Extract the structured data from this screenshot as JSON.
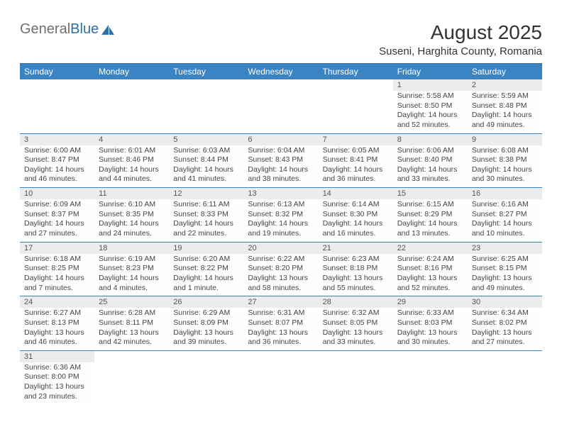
{
  "logo": {
    "word1": "General",
    "word2": "Blue"
  },
  "title": "August 2025",
  "location": "Suseni, Harghita County, Romania",
  "headers": [
    "Sunday",
    "Monday",
    "Tuesday",
    "Wednesday",
    "Thursday",
    "Friday",
    "Saturday"
  ],
  "colors": {
    "header_bg": "#3b84c4",
    "header_text": "#ffffff",
    "daynum_bg": "#ececec",
    "rule": "#3b84c4",
    "text": "#444444",
    "logo_gray": "#6f6f6f",
    "logo_blue": "#2f6fa8"
  },
  "weeks": [
    [
      null,
      null,
      null,
      null,
      null,
      {
        "n": "1",
        "sr": "5:58 AM",
        "ss": "8:50 PM",
        "dl": "14 hours and 52 minutes."
      },
      {
        "n": "2",
        "sr": "5:59 AM",
        "ss": "8:48 PM",
        "dl": "14 hours and 49 minutes."
      }
    ],
    [
      {
        "n": "3",
        "sr": "6:00 AM",
        "ss": "8:47 PM",
        "dl": "14 hours and 46 minutes."
      },
      {
        "n": "4",
        "sr": "6:01 AM",
        "ss": "8:46 PM",
        "dl": "14 hours and 44 minutes."
      },
      {
        "n": "5",
        "sr": "6:03 AM",
        "ss": "8:44 PM",
        "dl": "14 hours and 41 minutes."
      },
      {
        "n": "6",
        "sr": "6:04 AM",
        "ss": "8:43 PM",
        "dl": "14 hours and 38 minutes."
      },
      {
        "n": "7",
        "sr": "6:05 AM",
        "ss": "8:41 PM",
        "dl": "14 hours and 36 minutes."
      },
      {
        "n": "8",
        "sr": "6:06 AM",
        "ss": "8:40 PM",
        "dl": "14 hours and 33 minutes."
      },
      {
        "n": "9",
        "sr": "6:08 AM",
        "ss": "8:38 PM",
        "dl": "14 hours and 30 minutes."
      }
    ],
    [
      {
        "n": "10",
        "sr": "6:09 AM",
        "ss": "8:37 PM",
        "dl": "14 hours and 27 minutes."
      },
      {
        "n": "11",
        "sr": "6:10 AM",
        "ss": "8:35 PM",
        "dl": "14 hours and 24 minutes."
      },
      {
        "n": "12",
        "sr": "6:11 AM",
        "ss": "8:33 PM",
        "dl": "14 hours and 22 minutes."
      },
      {
        "n": "13",
        "sr": "6:13 AM",
        "ss": "8:32 PM",
        "dl": "14 hours and 19 minutes."
      },
      {
        "n": "14",
        "sr": "6:14 AM",
        "ss": "8:30 PM",
        "dl": "14 hours and 16 minutes."
      },
      {
        "n": "15",
        "sr": "6:15 AM",
        "ss": "8:29 PM",
        "dl": "14 hours and 13 minutes."
      },
      {
        "n": "16",
        "sr": "6:16 AM",
        "ss": "8:27 PM",
        "dl": "14 hours and 10 minutes."
      }
    ],
    [
      {
        "n": "17",
        "sr": "6:18 AM",
        "ss": "8:25 PM",
        "dl": "14 hours and 7 minutes."
      },
      {
        "n": "18",
        "sr": "6:19 AM",
        "ss": "8:23 PM",
        "dl": "14 hours and 4 minutes."
      },
      {
        "n": "19",
        "sr": "6:20 AM",
        "ss": "8:22 PM",
        "dl": "14 hours and 1 minute."
      },
      {
        "n": "20",
        "sr": "6:22 AM",
        "ss": "8:20 PM",
        "dl": "13 hours and 58 minutes."
      },
      {
        "n": "21",
        "sr": "6:23 AM",
        "ss": "8:18 PM",
        "dl": "13 hours and 55 minutes."
      },
      {
        "n": "22",
        "sr": "6:24 AM",
        "ss": "8:16 PM",
        "dl": "13 hours and 52 minutes."
      },
      {
        "n": "23",
        "sr": "6:25 AM",
        "ss": "8:15 PM",
        "dl": "13 hours and 49 minutes."
      }
    ],
    [
      {
        "n": "24",
        "sr": "6:27 AM",
        "ss": "8:13 PM",
        "dl": "13 hours and 46 minutes."
      },
      {
        "n": "25",
        "sr": "6:28 AM",
        "ss": "8:11 PM",
        "dl": "13 hours and 42 minutes."
      },
      {
        "n": "26",
        "sr": "6:29 AM",
        "ss": "8:09 PM",
        "dl": "13 hours and 39 minutes."
      },
      {
        "n": "27",
        "sr": "6:31 AM",
        "ss": "8:07 PM",
        "dl": "13 hours and 36 minutes."
      },
      {
        "n": "28",
        "sr": "6:32 AM",
        "ss": "8:05 PM",
        "dl": "13 hours and 33 minutes."
      },
      {
        "n": "29",
        "sr": "6:33 AM",
        "ss": "8:03 PM",
        "dl": "13 hours and 30 minutes."
      },
      {
        "n": "30",
        "sr": "6:34 AM",
        "ss": "8:02 PM",
        "dl": "13 hours and 27 minutes."
      }
    ],
    [
      {
        "n": "31",
        "sr": "6:36 AM",
        "ss": "8:00 PM",
        "dl": "13 hours and 23 minutes."
      },
      null,
      null,
      null,
      null,
      null,
      null
    ]
  ],
  "labels": {
    "sunrise": "Sunrise: ",
    "sunset": "Sunset: ",
    "daylight": "Daylight: "
  }
}
